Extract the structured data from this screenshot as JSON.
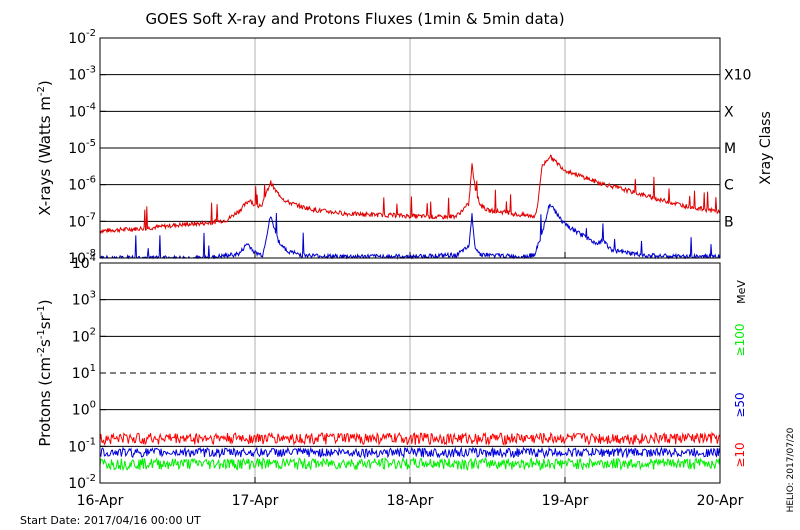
{
  "title": "GOES Soft X-ray and Protons Fluxes   (1min & 5min data)",
  "footer": {
    "start_date": "Start Date: 2017/04/16 00:00 UT",
    "credit": "HELIO: 2017/07/20"
  },
  "colors": {
    "xray_long": "#e00000",
    "xray_short": "#0000cc",
    "protons_10": "#ff0000",
    "protons_50": "#0000dd",
    "protons_100": "#00ee00",
    "gridline": "#000000",
    "day_divider": "#b0b0b0"
  },
  "chart_data": [
    {
      "type": "line",
      "title": "GOES Soft X-ray and Protons Fluxes   (1min & 5min data)",
      "ylabel_main": "X-rays (Watts m",
      "ylabel_sup": "-2",
      "ylabel_end": ")",
      "yscale": "log",
      "ylim": [
        1e-08,
        0.01
      ],
      "ytick_exponents": [
        "-8",
        "-7",
        "-6",
        "-5",
        "-4",
        "-3",
        "-2"
      ],
      "ytick_base": "10",
      "right_axis_title": "Xray Class",
      "class_labels": [
        {
          "label": "X10",
          "value": 0.001
        },
        {
          "label": "X",
          "value": 0.0001
        },
        {
          "label": "M",
          "value": 1e-05
        },
        {
          "label": "C",
          "value": 1e-06
        },
        {
          "label": "B",
          "value": 1e-07
        }
      ],
      "grid_lines_at": [
        1e-07,
        1e-06,
        1e-05,
        0.0001,
        0.001
      ],
      "x_range_days": [
        "2017-04-16",
        "2017-04-20"
      ],
      "series": [
        {
          "name": "",
          "color_key": "xray_long",
          "x_days": [
            0.0,
            0.3,
            0.5,
            0.7,
            0.82,
            0.9,
            0.97,
            1.0,
            1.05,
            1.1,
            1.13,
            1.2,
            1.3,
            1.4,
            1.5,
            1.6,
            1.8,
            2.0,
            2.2,
            2.3,
            2.38,
            2.4,
            2.42,
            2.45,
            2.5,
            2.6,
            2.7,
            2.8,
            2.82,
            2.85,
            2.9,
            3.0,
            3.2,
            3.4,
            3.6,
            3.8,
            4.0
          ],
          "y": [
            5.5e-08,
            6.5e-08,
            8e-08,
            9e-08,
            1.1e-07,
            2e-07,
            4e-07,
            2.5e-07,
            3e-07,
            1.2e-06,
            7e-07,
            3.5e-07,
            2.5e-07,
            2e-07,
            1.8e-07,
            1.6e-07,
            1.5e-07,
            1.4e-07,
            1.3e-07,
            1.4e-07,
            3e-07,
            3.5e-06,
            8e-07,
            3e-07,
            2e-07,
            1.8e-07,
            1.5e-07,
            1.4e-07,
            2e-07,
            3e-06,
            6e-06,
            2.5e-06,
            1.2e-06,
            7e-07,
            4e-07,
            2.5e-07,
            1.8e-07
          ]
        },
        {
          "name": "",
          "color_key": "xray_short",
          "x_days": [
            0.0,
            0.3,
            0.5,
            0.7,
            0.9,
            0.95,
            1.0,
            1.05,
            1.1,
            1.15,
            1.2,
            1.3,
            1.5,
            1.6,
            1.8,
            2.0,
            2.3,
            2.38,
            2.4,
            2.42,
            2.45,
            2.5,
            2.7,
            2.8,
            2.85,
            2.9,
            3.0,
            3.2,
            3.25,
            3.3,
            3.5,
            3.7,
            4.0
          ],
          "y": [
            1e-08,
            1e-08,
            1e-08,
            1e-08,
            1.3e-08,
            2.5e-08,
            1.4e-08,
            1.2e-08,
            1.4e-07,
            3e-08,
            1.6e-08,
            1.2e-08,
            1.1e-08,
            1.1e-08,
            1.1e-08,
            1.1e-08,
            1.2e-08,
            2e-08,
            1.5e-07,
            2e-08,
            1.3e-08,
            1.2e-08,
            1.1e-08,
            1.2e-08,
            4e-08,
            3e-07,
            8e-08,
            2.5e-08,
            3e-08,
            1.6e-08,
            1.2e-08,
            1.1e-08,
            1.1e-08
          ]
        }
      ]
    },
    {
      "type": "line",
      "ylabel_main": "Protons (cm",
      "ylabel_sup1": "-2",
      "ylabel_mid": "s",
      "ylabel_sup2": "-1",
      "ylabel_mid2": "sr",
      "ylabel_sup3": "-1",
      "ylabel_end": ")",
      "yscale": "log",
      "ylim": [
        0.01,
        10000
      ],
      "ytick_base": "10",
      "ytick_exponents": [
        "-2",
        "-1",
        "0",
        "1",
        "2",
        "3",
        "4"
      ],
      "grid_lines_at": [
        0.1,
        1,
        100,
        1000
      ],
      "dashed_threshold": 10,
      "right_axis_title": "MeV",
      "energy_labels": [
        {
          "label": "≥100",
          "color_key": "protons_100"
        },
        {
          "label": "≥50",
          "color_key": "protons_50"
        },
        {
          "label": "≥10",
          "color_key": "protons_10"
        }
      ],
      "series": [
        {
          "name": "≥10",
          "color_key": "protons_10",
          "level": 0.17,
          "spread": 0.06
        },
        {
          "name": "≥50",
          "color_key": "protons_50",
          "level": 0.07,
          "spread": 0.02
        },
        {
          "name": "≥100",
          "color_key": "protons_100",
          "level": 0.035,
          "spread": 0.012
        }
      ],
      "xtick_labels": [
        "16-Apr",
        "17-Apr",
        "18-Apr",
        "19-Apr",
        "20-Apr"
      ]
    }
  ]
}
